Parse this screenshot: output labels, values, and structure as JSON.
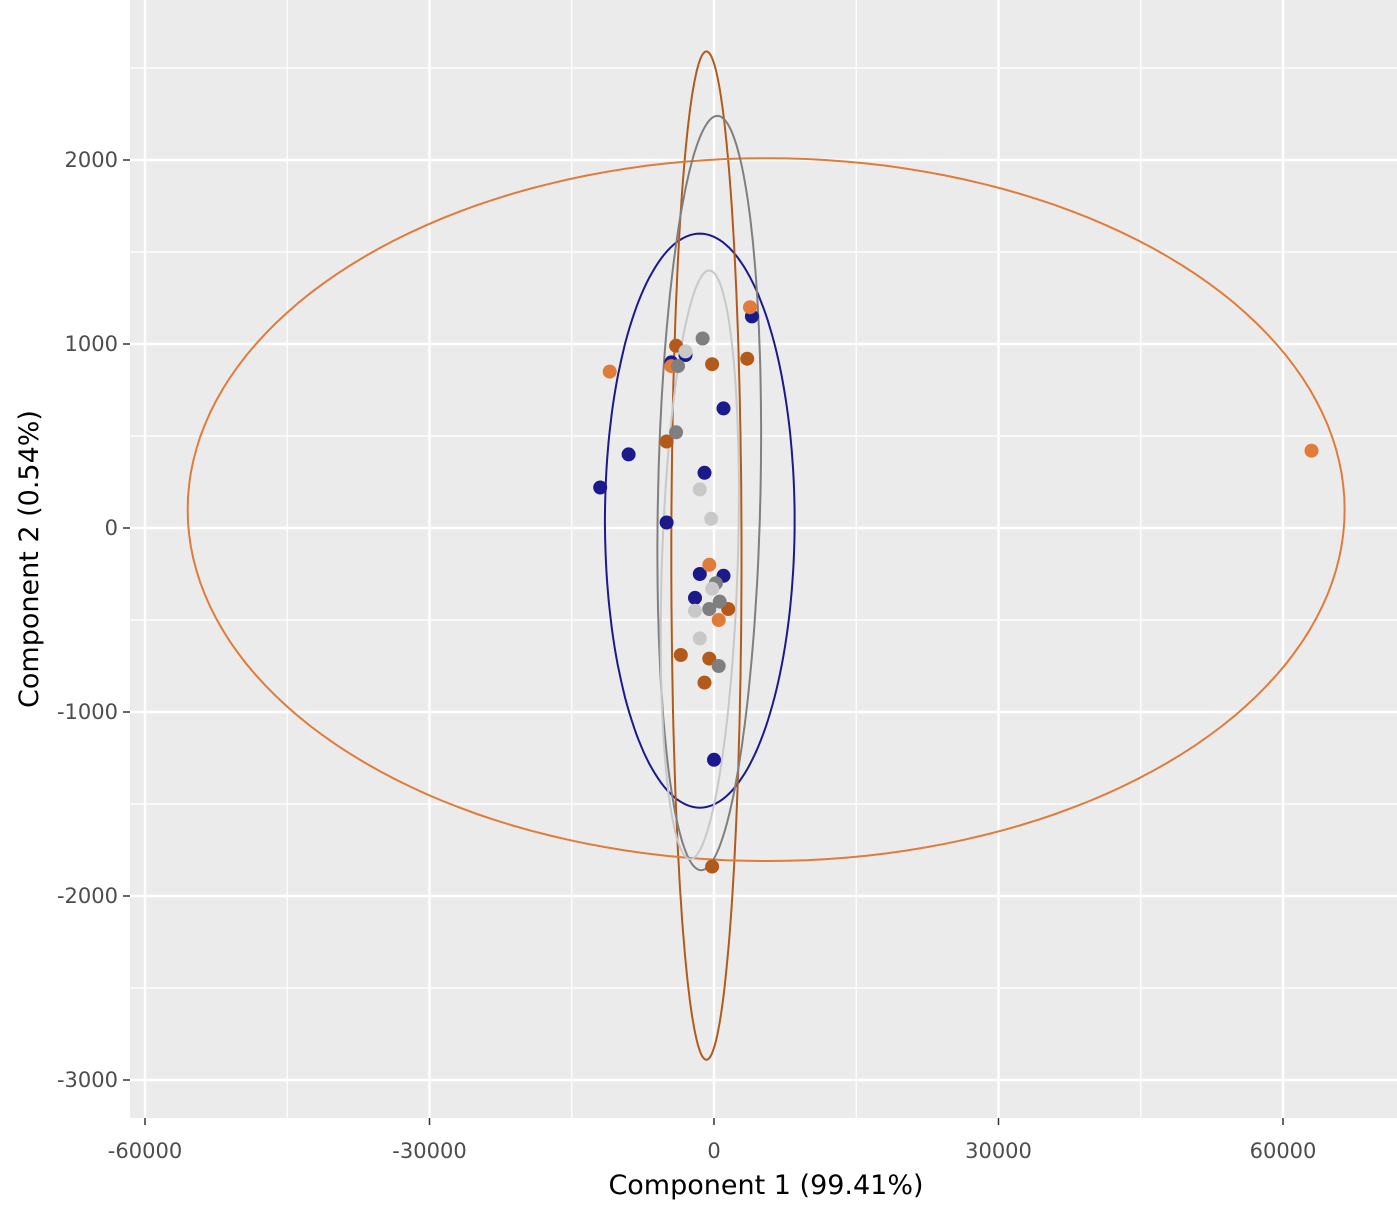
{
  "chart_data": {
    "type": "scatter",
    "xlabel": "Component 1 (99.41%)",
    "ylabel": "Component 2 (0.54%)",
    "xlim": [
      -60000,
      69000
    ],
    "ylim": [
      -3200,
      2850
    ],
    "x_ticks": [
      -60000,
      -30000,
      0,
      30000,
      60000
    ],
    "x_tick_labels": [
      "-60000",
      "-30000",
      "0",
      "30000",
      "60000"
    ],
    "y_ticks": [
      -3000,
      -2000,
      -1000,
      0,
      1000,
      2000
    ],
    "y_tick_labels": [
      "-3000",
      "-2000",
      "-1000",
      "0",
      "1000",
      "2000"
    ],
    "grid": true,
    "legend": "none",
    "colors": {
      "panel_background": "#ebebeb",
      "grid": "#ffffff",
      "navy": "#1a1a8c",
      "dark_orange": "#b35a1a",
      "orange": "#e07b39",
      "dark_gray": "#7f7f7f",
      "light_gray": "#c8c8c8"
    },
    "series": [
      {
        "color": "#1a1a8c",
        "points": [
          [
            4000,
            1150
          ],
          [
            -3000,
            940
          ],
          [
            -4500,
            900
          ],
          [
            1000,
            650
          ],
          [
            -9000,
            400
          ],
          [
            -12000,
            220
          ],
          [
            -1000,
            300
          ],
          [
            -5000,
            30
          ],
          [
            -1500,
            -250
          ],
          [
            1000,
            -260
          ],
          [
            -2000,
            -380
          ],
          [
            0,
            -1260
          ]
        ],
        "ellipse": {
          "cx": -1500,
          "cy": 40,
          "rx": 10000,
          "ry": 1560,
          "angle": 0
        }
      },
      {
        "color": "#b35a1a",
        "points": [
          [
            -4000,
            990
          ],
          [
            -200,
            890
          ],
          [
            3500,
            920
          ],
          [
            -5000,
            470
          ],
          [
            -3500,
            -690
          ],
          [
            -500,
            -710
          ],
          [
            -1000,
            -840
          ],
          [
            -200,
            -1840
          ],
          [
            1500,
            -440
          ]
        ],
        "ellipse": {
          "cx": -800,
          "cy": -150,
          "rx": 3700,
          "ry": 2740,
          "angle": 0
        }
      },
      {
        "color": "#e07b39",
        "points": [
          [
            -11000,
            850
          ],
          [
            3800,
            1200
          ],
          [
            -4500,
            880
          ],
          [
            -500,
            -200
          ],
          [
            500,
            -500
          ],
          [
            63000,
            420
          ]
        ],
        "ellipse": {
          "cx": 5500,
          "cy": 100,
          "rx": 61000,
          "ry": 1910,
          "angle": 0
        }
      },
      {
        "color": "#7f7f7f",
        "points": [
          [
            -1200,
            1030
          ],
          [
            -4000,
            520
          ],
          [
            -3800,
            880
          ],
          [
            200,
            -300
          ],
          [
            -500,
            -440
          ],
          [
            500,
            -750
          ],
          [
            600,
            -400
          ]
        ],
        "ellipse": {
          "cx": -500,
          "cy": 190,
          "rx": 5400,
          "ry": 2050,
          "angle": -0.8
        }
      },
      {
        "color": "#c8c8c8",
        "points": [
          [
            -3000,
            960
          ],
          [
            -1500,
            210
          ],
          [
            -300,
            50
          ],
          [
            -2000,
            -450
          ],
          [
            -1500,
            -600
          ],
          [
            -200,
            -330
          ]
        ],
        "ellipse": {
          "cx": -1500,
          "cy": -200,
          "rx": 4000,
          "ry": 1600,
          "angle": -1.2
        }
      }
    ]
  }
}
